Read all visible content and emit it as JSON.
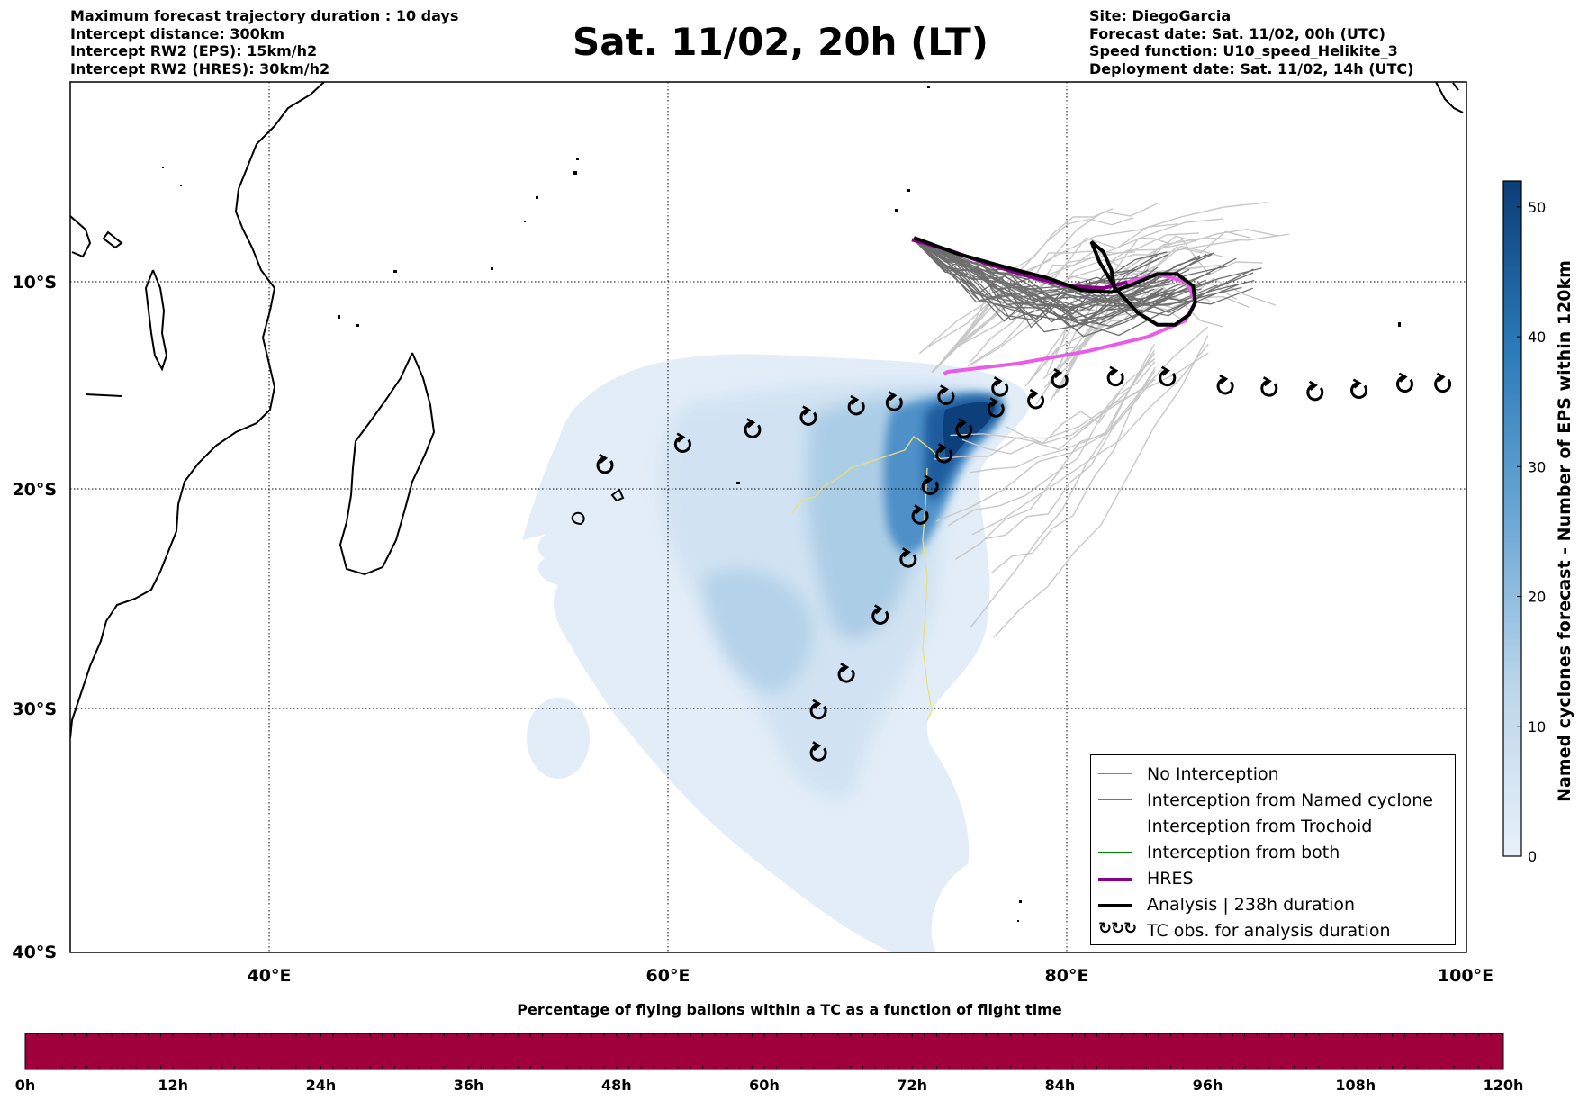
{
  "header_left": [
    "Maximum forecast trajectory duration : 10 days",
    "Intercept distance: 300km",
    "Intercept RW2 (EPS):  15km/h2",
    "Intercept RW2 (HRES): 30km/h2"
  ],
  "header_right": [
    "Site: DiegoGarcia",
    "Forecast date: Sat. 11/02, 00h (UTC)",
    "Speed function: U10_speed_Helikite_3",
    "Deployment date: Sat. 11/02, 14h (UTC)"
  ],
  "title": "Sat. 11/02, 20h (LT)",
  "map": {
    "lon_range": [
      30,
      100
    ],
    "lat_range": [
      -40,
      0
    ],
    "lon_ticks": [
      {
        "value": 40,
        "label": "40°E"
      },
      {
        "value": 60,
        "label": "60°E"
      },
      {
        "value": 80,
        "label": "80°E"
      },
      {
        "value": 100,
        "label": "100°E"
      }
    ],
    "lat_ticks": [
      {
        "value": -10,
        "label": "10°S"
      },
      {
        "value": -20,
        "label": "20°S"
      },
      {
        "value": -30,
        "label": "30°S"
      },
      {
        "value": -40,
        "label": "40°S"
      }
    ],
    "grid": true
  },
  "colorbar_right": {
    "label": "Named cyclones forecast - Number of EPS within 120km",
    "ticks": [
      "0",
      "10",
      "20",
      "30",
      "40",
      "50"
    ],
    "range": [
      0,
      52
    ]
  },
  "legend": [
    {
      "label": "No Interception",
      "color": "#808080",
      "kind": "line"
    },
    {
      "label": "Interception from Named cyclone",
      "color": "#ff4500",
      "kind": "line"
    },
    {
      "label": "Interception from Trochoid",
      "color": "#808000",
      "kind": "line"
    },
    {
      "label": "Interception from both",
      "color": "#008000",
      "kind": "line"
    },
    {
      "label": "HRES",
      "color": "#8b008b",
      "kind": "thick"
    },
    {
      "label": "Analysis | 238h duration",
      "color": "#000000",
      "kind": "thick"
    },
    {
      "label": "TC obs. for analysis duration",
      "color": "#000000",
      "kind": "symbol"
    }
  ],
  "tc_observations": [
    {
      "lon": 56.8,
      "lat": -18.9
    },
    {
      "lon": 60.7,
      "lat": -17.9
    },
    {
      "lon": 64.2,
      "lat": -17.2
    },
    {
      "lon": 67.0,
      "lat": -16.6
    },
    {
      "lon": 69.4,
      "lat": -16.1
    },
    {
      "lon": 71.3,
      "lat": -15.9
    },
    {
      "lon": 73.9,
      "lat": -15.6
    },
    {
      "lon": 76.6,
      "lat": -15.2
    },
    {
      "lon": 79.6,
      "lat": -14.8
    },
    {
      "lon": 82.4,
      "lat": -14.7
    },
    {
      "lon": 85.0,
      "lat": -14.7
    },
    {
      "lon": 87.9,
      "lat": -15.1
    },
    {
      "lon": 90.1,
      "lat": -15.2
    },
    {
      "lon": 92.4,
      "lat": -15.4
    },
    {
      "lon": 94.6,
      "lat": -15.3
    },
    {
      "lon": 96.9,
      "lat": -15.0
    },
    {
      "lon": 98.8,
      "lat": -15.0
    },
    {
      "lon": 78.4,
      "lat": -15.8
    },
    {
      "lon": 76.4,
      "lat": -16.2
    },
    {
      "lon": 74.8,
      "lat": -17.2
    },
    {
      "lon": 73.8,
      "lat": -18.4
    },
    {
      "lon": 73.1,
      "lat": -19.9
    },
    {
      "lon": 72.6,
      "lat": -21.3
    },
    {
      "lon": 72.0,
      "lat": -23.3
    },
    {
      "lon": 70.6,
      "lat": -25.9
    },
    {
      "lon": 68.9,
      "lat": -28.5
    },
    {
      "lon": 67.5,
      "lat": -30.1
    },
    {
      "lon": 67.5,
      "lat": -31.9
    }
  ],
  "hres_track": [
    [
      72.2,
      -7.9
    ],
    [
      74.0,
      -8.4
    ],
    [
      76.0,
      -9.1
    ],
    [
      78.0,
      -9.7
    ],
    [
      80.0,
      -10.2
    ],
    [
      81.8,
      -10.3
    ],
    [
      83.0,
      -10.0
    ],
    [
      84.5,
      -9.6
    ],
    [
      86.0,
      -10.0
    ],
    [
      86.4,
      -11.0
    ],
    [
      85.9,
      -11.9
    ],
    [
      84.0,
      -12.7
    ],
    [
      81.0,
      -13.4
    ],
    [
      77.5,
      -14.0
    ],
    [
      74.0,
      -14.4
    ],
    [
      73.8,
      -14.5
    ]
  ],
  "analysis_track": [
    [
      72.3,
      -7.8
    ],
    [
      74.5,
      -8.6
    ],
    [
      77.0,
      -9.3
    ],
    [
      79.0,
      -9.8
    ],
    [
      80.7,
      -10.4
    ],
    [
      82.2,
      -10.5
    ],
    [
      83.3,
      -10.1
    ],
    [
      84.5,
      -9.6
    ],
    [
      85.5,
      -9.6
    ],
    [
      86.3,
      -10.2
    ],
    [
      86.4,
      -11.0
    ],
    [
      86.1,
      -11.6
    ],
    [
      85.4,
      -12.1
    ],
    [
      84.5,
      -12.1
    ],
    [
      83.5,
      -11.5
    ],
    [
      82.4,
      -10.3
    ],
    [
      81.6,
      -9.0
    ],
    [
      81.2,
      -8.0
    ],
    [
      81.8,
      -8.5
    ],
    [
      82.2,
      -9.4
    ],
    [
      82.4,
      -10.5
    ]
  ],
  "bottom_colorbar": {
    "title": "Percentage of flying ballons within a TC as a function of flight time",
    "color": "#a0003c",
    "ticks": [
      "0h",
      "12h",
      "24h",
      "36h",
      "48h",
      "60h",
      "72h",
      "84h",
      "96h",
      "108h",
      "120h"
    ]
  }
}
